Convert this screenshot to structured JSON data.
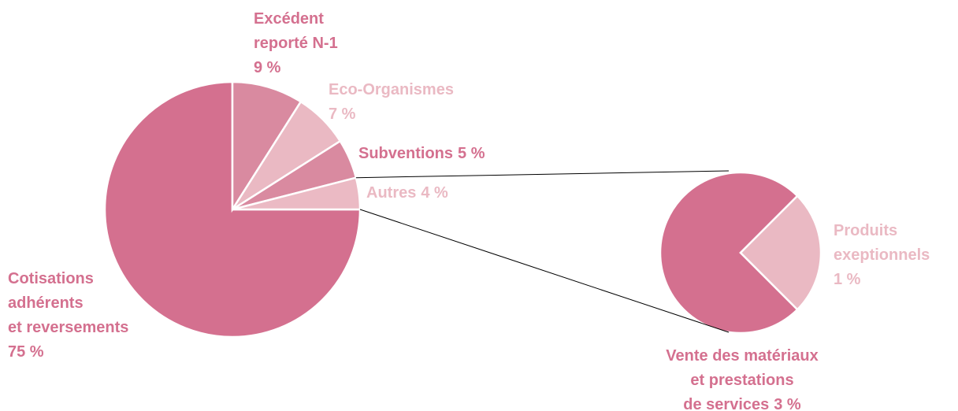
{
  "chart_data": {
    "type": "pie_of_pie",
    "main": {
      "categories": [
        [
          "Cotisations",
          "adhérents",
          "et reversements"
        ],
        [
          "Excédent",
          "reporté N-1"
        ],
        [
          "Eco-Organismes"
        ],
        [
          "Subventions"
        ],
        [
          "Autres"
        ]
      ],
      "values": [
        75,
        9,
        7,
        5,
        4
      ],
      "value_labels": [
        "75 %",
        "9 %",
        "7 %",
        "5 %",
        "4 %"
      ],
      "colors": [
        "#d4708f",
        "#d98aa0",
        "#eab9c3",
        "#d98aa0",
        "#ebbac4"
      ],
      "label_colors": [
        "#d4708f",
        "#d4708f",
        "#eab9c3",
        "#d4708f",
        "#eab9c3"
      ],
      "exploded": 4
    },
    "secondary": {
      "categories": [
        [
          "Vente des matériaux",
          "et prestations",
          "de services"
        ],
        [
          "Produits",
          "exeptionnels"
        ]
      ],
      "values": [
        3,
        1
      ],
      "value_labels": [
        "3 %",
        "1 %"
      ],
      "colors": [
        "#d4708f",
        "#eab9c3"
      ],
      "label_colors": [
        "#d4708f",
        "#eab9c3"
      ]
    }
  }
}
